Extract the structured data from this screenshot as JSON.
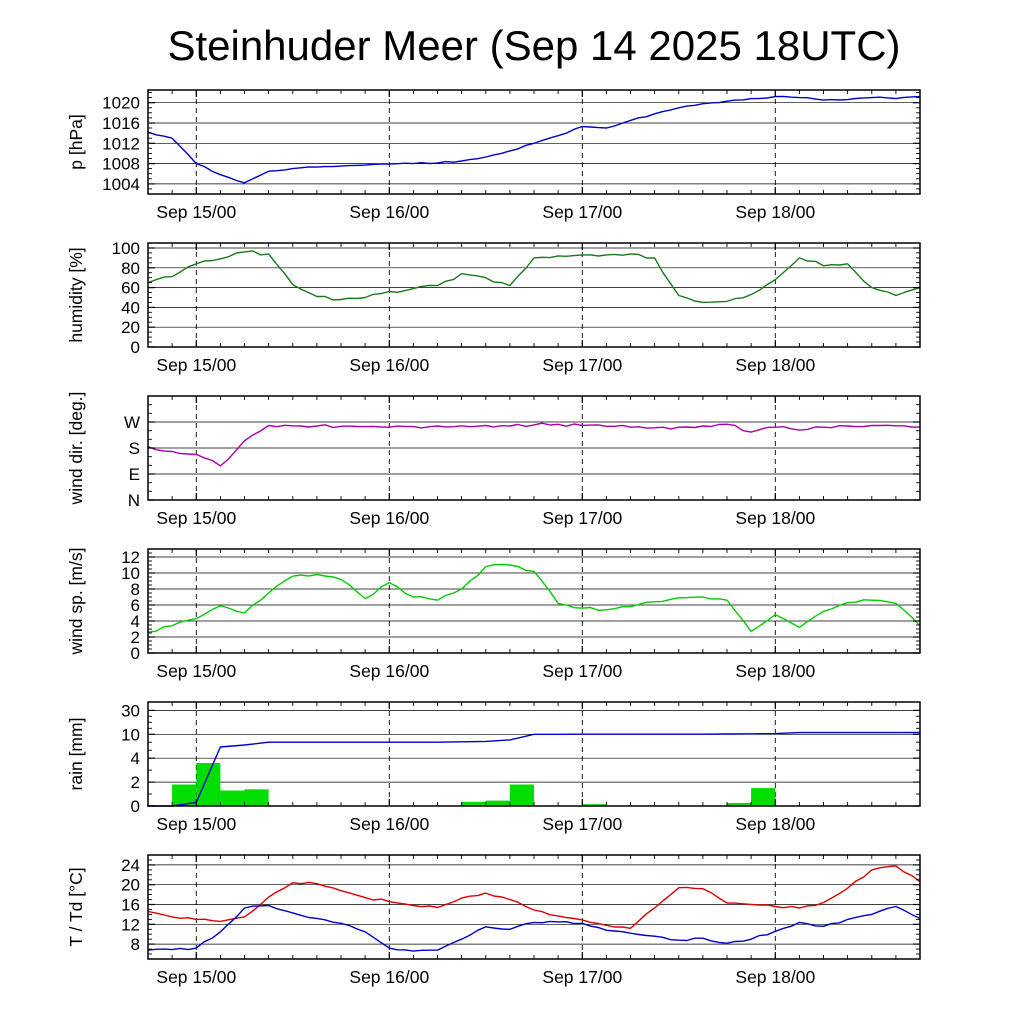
{
  "title": "Steinhuder Meer (Sep 14 2025 18UTC)",
  "chart_data": {
    "type": "line",
    "layout": "stacked-meteogram-panels",
    "x": {
      "start_hour": 0,
      "end_hour": 96,
      "minor_step_hours": 3,
      "day_ticks": [
        {
          "hour": 6,
          "label": "Sep 15/00"
        },
        {
          "hour": 30,
          "label": "Sep 16/00"
        },
        {
          "hour": 54,
          "label": "Sep 17/00"
        },
        {
          "hour": 78,
          "label": "Sep 18/00"
        }
      ]
    },
    "hours": [
      0,
      3,
      6,
      9,
      12,
      15,
      18,
      21,
      24,
      27,
      30,
      33,
      36,
      39,
      42,
      45,
      48,
      51,
      54,
      57,
      60,
      63,
      66,
      69,
      72,
      75,
      78,
      81,
      84,
      87,
      90,
      93,
      96
    ],
    "panels": [
      {
        "id": "pressure",
        "ylabel": "p [hPa]",
        "ylim": [
          1002,
          1022.5
        ],
        "yticks": [
          1004,
          1008,
          1012,
          1016,
          1020
        ],
        "minor_step": 1,
        "series": [
          {
            "name": "pressure",
            "color": "#0000cc",
            "values": [
              1014.2,
              1013.0,
              1008.0,
              1005.8,
              1004.2,
              1006.5,
              1007.0,
              1007.3,
              1007.5,
              1007.7,
              1007.9,
              1008.0,
              1008.1,
              1008.5,
              1009.3,
              1010.5,
              1012.0,
              1013.5,
              1015.3,
              1015.0,
              1016.5,
              1017.8,
              1019.0,
              1019.8,
              1020.3,
              1020.8,
              1021.2,
              1021.0,
              1020.5,
              1020.6,
              1021.0,
              1020.8,
              1021.2
            ]
          }
        ]
      },
      {
        "id": "humidity",
        "ylabel": "humidity [%]",
        "ylim": [
          0,
          105
        ],
        "yticks": [
          0,
          20,
          40,
          60,
          80,
          100
        ],
        "minor_step": 5,
        "series": [
          {
            "name": "humidity",
            "color": "#1a7a1a",
            "values": [
              65,
              71,
              84,
              89,
              96,
              94,
              63,
              51,
              48,
              50,
              56,
              59,
              62,
              74,
              70,
              62,
              90,
              92,
              93,
              93,
              94,
              90,
              52,
              45,
              46,
              53,
              68,
              90,
              82,
              84,
              60,
              52,
              60
            ]
          }
        ]
      },
      {
        "id": "wind-direction",
        "ylabel": "wind dir. [deg.]",
        "ylim": [
          0,
          360
        ],
        "yticks": [
          0,
          90,
          180,
          270
        ],
        "ytick_labels": [
          "N",
          "E",
          "S",
          "W"
        ],
        "minor_step": 30,
        "series": [
          {
            "name": "wind-direction",
            "color": "#aa00aa",
            "values": [
              185,
              168,
              158,
              118,
              205,
              258,
              257,
              256,
              255,
              254,
              252,
              254,
              256,
              257,
              258,
              256,
              260,
              262,
              258,
              255,
              252,
              250,
              252,
              256,
              262,
              235,
              252,
              242,
              252,
              256,
              258,
              257,
              252
            ]
          }
        ]
      },
      {
        "id": "wind-speed",
        "ylabel": "wind sp. [m/s]",
        "ylim": [
          0,
          13
        ],
        "yticks": [
          0,
          2,
          4,
          6,
          8,
          10,
          12
        ],
        "minor_step": 0.5,
        "series": [
          {
            "name": "wind-speed",
            "color": "#00cc00",
            "values": [
              2.6,
              3.4,
              4.3,
              5.9,
              5.0,
              7.5,
              9.6,
              9.8,
              9.2,
              6.8,
              8.8,
              7.0,
              6.6,
              8.0,
              10.8,
              11.0,
              10.2,
              6.2,
              5.6,
              5.4,
              5.8,
              6.4,
              6.9,
              7.0,
              6.6,
              2.7,
              4.8,
              3.2,
              5.2,
              6.3,
              6.6,
              6.2,
              3.4
            ]
          }
        ]
      },
      {
        "id": "rain",
        "ylabel": "rain [mm]",
        "scale": "segmented",
        "scale_ticks": [
          0,
          2,
          4,
          10,
          30
        ],
        "minor_values": [
          1,
          3,
          6,
          8,
          15,
          20,
          25
        ],
        "top_margin_segments": 0.35,
        "series": [
          {
            "name": "cumulative-rain",
            "color": "#0000cc",
            "values": [
              0,
              0,
              0.3,
              6.8,
              7.3,
              8.0,
              8.0,
              8.0,
              8.0,
              8.0,
              8.0,
              8.0,
              8.0,
              8.1,
              8.2,
              8.6,
              10.0,
              10.0,
              10.1,
              10.1,
              10.1,
              10.1,
              10.1,
              10.1,
              10.2,
              10.4,
              10.6,
              11.4,
              11.4,
              11.4,
              11.4,
              11.4,
              11.5
            ]
          }
        ],
        "bars": {
          "name": "rain-3h-totals",
          "color": "#00dd00",
          "bin_hours": 3,
          "items": [
            [
              3,
              1.8
            ],
            [
              6,
              3.6
            ],
            [
              9,
              1.3
            ],
            [
              12,
              1.4
            ],
            [
              39,
              0.35
            ],
            [
              42,
              0.45
            ],
            [
              45,
              1.8
            ],
            [
              54,
              0.15
            ],
            [
              72,
              0.25
            ],
            [
              75,
              1.5
            ]
          ]
        }
      },
      {
        "id": "temperature",
        "ylabel": "T / Td [°C]",
        "ylim": [
          5,
          26
        ],
        "yticks": [
          8,
          12,
          16,
          20,
          24
        ],
        "minor_step": 1,
        "series": [
          {
            "name": "temperature",
            "color": "#dd0000",
            "values": [
              14.6,
              13.5,
              13.0,
              12.6,
              13.5,
              17.5,
              20.4,
              20.2,
              18.8,
              17.4,
              16.6,
              15.8,
              15.4,
              17.3,
              18.3,
              17.0,
              14.9,
              13.7,
              12.9,
              11.8,
              11.2,
              15.3,
              19.4,
              19.2,
              16.3,
              16.0,
              15.6,
              15.3,
              16.4,
              19.3,
              23.0,
              23.8,
              20.6
            ]
          },
          {
            "name": "dew-point",
            "color": "#0000cc",
            "values": [
              6.8,
              6.9,
              7.2,
              10.5,
              15.3,
              15.8,
              14.3,
              13.2,
              12.2,
              10.5,
              7.2,
              6.6,
              6.8,
              9.0,
              11.5,
              11.0,
              12.4,
              12.5,
              12.2,
              10.8,
              10.2,
              9.6,
              8.8,
              9.2,
              8.2,
              9.0,
              10.6,
              12.4,
              11.6,
              13.0,
              14.0,
              15.6,
              13.2
            ]
          }
        ]
      }
    ]
  }
}
